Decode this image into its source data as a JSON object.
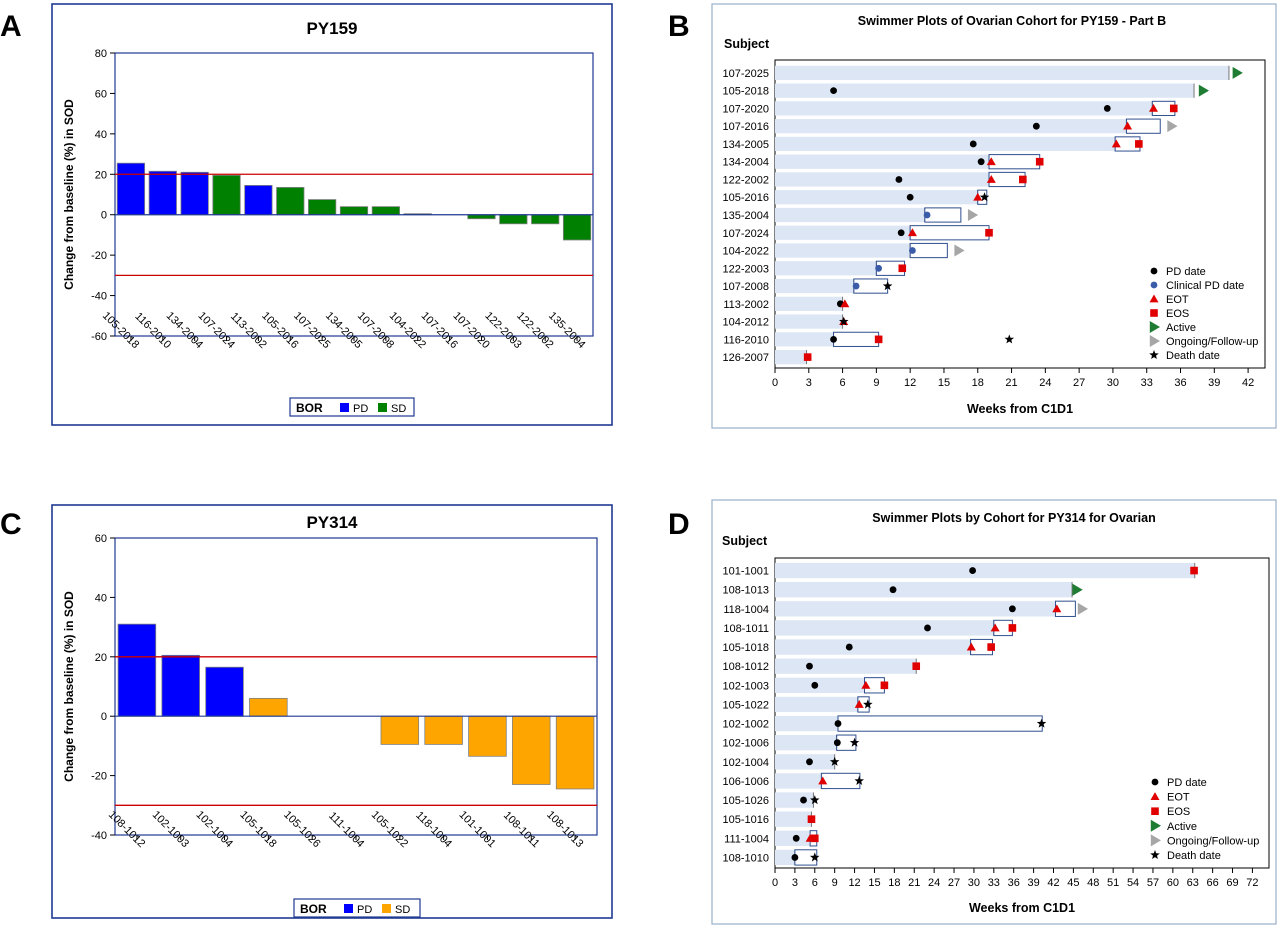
{
  "panel_letters": [
    "A",
    "B",
    "C",
    "D"
  ],
  "chart_data": [
    {
      "panel": "A",
      "type": "bar",
      "title": "PY159",
      "ylabel": "Change from baseline (%) in SOD",
      "ylim": [
        -60,
        80
      ],
      "yticks": [
        80,
        60,
        40,
        20,
        0,
        -20,
        -40,
        -60
      ],
      "ref_lines": [
        20,
        -30
      ],
      "categories": [
        "105-2018",
        "116-2010",
        "134-2004",
        "107-2024",
        "113-2002",
        "105-2016",
        "107-2025",
        "134-2005",
        "107-2008",
        "104-2022",
        "107-2016",
        "107-2020",
        "122-2003",
        "122-2002",
        "135-2004"
      ],
      "values": [
        25.5,
        21.5,
        21,
        19.5,
        14.5,
        13.5,
        7.5,
        4,
        4,
        0.5,
        0,
        -2,
        -4.5,
        -4.5,
        -12.5
      ],
      "groups": [
        "PD",
        "PD",
        "PD",
        "SD",
        "PD",
        "SD",
        "SD",
        "SD",
        "SD",
        "SD",
        "SD",
        "SD",
        "SD",
        "SD",
        "SD"
      ],
      "legend": {
        "title": "BOR",
        "items": [
          "PD",
          "SD"
        ]
      },
      "colors": {
        "PD": "#0000FF",
        "SD": "#008000",
        "ref": "#CC0000"
      }
    },
    {
      "panel": "B",
      "type": "swimmer",
      "title": "Swimmer Plots of Ovarian Cohort for PY159 - Part B",
      "ylabel": "Subject",
      "xlabel": "Weeks from C1D1",
      "xlim": [
        0,
        43.5
      ],
      "xticks": [
        0,
        3,
        6,
        9,
        12,
        15,
        18,
        21,
        24,
        27,
        30,
        33,
        36,
        39,
        42
      ],
      "subjects": [
        {
          "id": "107-2025",
          "bar": 40.3,
          "box": null,
          "pd": null,
          "cpd": null,
          "eot": null,
          "eos": null,
          "death": null,
          "active": 41,
          "ongoing": null
        },
        {
          "id": "105-2018",
          "bar": 37.2,
          "box": null,
          "pd": 5.2,
          "cpd": null,
          "eot": null,
          "eos": null,
          "death": null,
          "active": 38,
          "ongoing": null
        },
        {
          "id": "107-2020",
          "bar": 33.5,
          "box": [
            33.5,
            35.5
          ],
          "pd": 29.5,
          "cpd": null,
          "eot": 33.6,
          "eos": 35.4,
          "death": null,
          "active": null,
          "ongoing": null
        },
        {
          "id": "107-2016",
          "bar": 31.2,
          "box": [
            31.2,
            34.2
          ],
          "pd": 23.2,
          "cpd": null,
          "eot": 31.3,
          "eos": null,
          "death": null,
          "active": null,
          "ongoing": 35.2
        },
        {
          "id": "134-2005",
          "bar": 30.2,
          "box": [
            30.2,
            32.4
          ],
          "pd": 17.6,
          "cpd": null,
          "eot": 30.3,
          "eos": 32.3,
          "death": null,
          "active": null,
          "ongoing": null
        },
        {
          "id": "134-2004",
          "bar": 19,
          "box": [
            19,
            23.5
          ],
          "pd": 18.3,
          "cpd": null,
          "eot": 19.2,
          "eos": 23.5,
          "death": null,
          "active": null,
          "ongoing": null
        },
        {
          "id": "122-2002",
          "bar": 19,
          "box": [
            19,
            22.2
          ],
          "pd": 11,
          "cpd": null,
          "eot": 19.2,
          "eos": 22,
          "death": null,
          "active": null,
          "ongoing": null
        },
        {
          "id": "105-2016",
          "bar": 18,
          "box": [
            18,
            18.8
          ],
          "pd": 12,
          "cpd": null,
          "eot": 18,
          "eos": null,
          "death": 18.6,
          "active": null,
          "ongoing": null
        },
        {
          "id": "135-2004",
          "bar": 13.3,
          "box": [
            13.3,
            16.5
          ],
          "pd": null,
          "cpd": 13.5,
          "eot": null,
          "eos": null,
          "death": null,
          "active": null,
          "ongoing": 17.5
        },
        {
          "id": "107-2024",
          "bar": 12,
          "box": [
            12,
            19
          ],
          "pd": 11.2,
          "cpd": null,
          "eot": 12.2,
          "eos": 19,
          "death": null,
          "active": null,
          "ongoing": null
        },
        {
          "id": "104-2022",
          "bar": 12,
          "box": [
            12,
            15.3
          ],
          "pd": null,
          "cpd": 12.2,
          "eot": null,
          "eos": null,
          "death": null,
          "active": null,
          "ongoing": 16.3
        },
        {
          "id": "122-2003",
          "bar": 9,
          "box": [
            9,
            11.5
          ],
          "pd": null,
          "cpd": 9.2,
          "eot": null,
          "eos": 11.3,
          "death": null,
          "active": null,
          "ongoing": null
        },
        {
          "id": "107-2008",
          "bar": 7,
          "box": [
            7,
            10
          ],
          "pd": null,
          "cpd": 7.2,
          "eot": null,
          "eos": null,
          "death": 10,
          "active": null,
          "ongoing": null
        },
        {
          "id": "113-2002",
          "bar": 6,
          "box": null,
          "pd": 5.8,
          "cpd": null,
          "eot": 6.2,
          "eos": null,
          "death": null,
          "active": null,
          "ongoing": null
        },
        {
          "id": "104-2012",
          "bar": 6,
          "box": null,
          "pd": null,
          "cpd": null,
          "eot": 6.1,
          "eos": null,
          "death": 6.1,
          "active": null,
          "ongoing": null
        },
        {
          "id": "116-2010",
          "bar": 5.2,
          "box": [
            5.2,
            9.2
          ],
          "pd": 5.2,
          "cpd": null,
          "eot": null,
          "eos": 9.2,
          "death": 20.8,
          "active": null,
          "ongoing": null
        },
        {
          "id": "126-2007",
          "bar": 2.8,
          "box": null,
          "pd": null,
          "cpd": 2.9,
          "eot": null,
          "eos": 2.9,
          "death": null,
          "active": null,
          "ongoing": null
        }
      ],
      "legend": [
        "PD date",
        "Clinical PD date",
        "EOT",
        "EOS",
        "Active",
        "Ongoing/Follow-up",
        "Death date"
      ],
      "colors": {
        "bar": "#DCE6F4",
        "pd": "#000000",
        "cpd": "#3A5BA8",
        "eot": "#E00000",
        "eos": "#E00000",
        "active": "#1E7D32",
        "ongoing": "#A6A6A6",
        "death": "#000000"
      }
    },
    {
      "panel": "C",
      "type": "bar",
      "title": "PY314",
      "ylabel": "Change from baseline (%) in SOD",
      "ylim": [
        -40,
        60
      ],
      "yticks": [
        60,
        40,
        20,
        0,
        -20,
        -40
      ],
      "ref_lines": [
        20,
        -30
      ],
      "categories": [
        "108-1012",
        "102-1003",
        "102-1004",
        "105-1018",
        "105-1026",
        "111-1004",
        "105-1022",
        "118-1004",
        "101-1001",
        "108-1011",
        "108-1013"
      ],
      "values": [
        31,
        20.5,
        16.5,
        6,
        0,
        0,
        -9.5,
        -9.5,
        -13.5,
        -23,
        -24.5
      ],
      "groups": [
        "PD",
        "PD",
        "PD",
        "SD",
        "SD",
        "SD",
        "SD",
        "SD",
        "SD",
        "SD",
        "SD"
      ],
      "legend": {
        "title": "BOR",
        "items": [
          "PD",
          "SD"
        ]
      },
      "colors": {
        "PD": "#0000FF",
        "SD": "#FFA500",
        "ref": "#CC0000"
      }
    },
    {
      "panel": "D",
      "type": "swimmer",
      "title": "Swimmer Plots by Cohort for PY314 for Ovarian",
      "ylabel": "Subject",
      "xlabel": "Weeks from C1D1",
      "xlim": [
        0,
        74.5
      ],
      "xticks": [
        0,
        3,
        6,
        9,
        12,
        15,
        18,
        21,
        24,
        27,
        30,
        33,
        36,
        39,
        42,
        45,
        48,
        51,
        54,
        57,
        60,
        63,
        66,
        69,
        72
      ],
      "subjects": [
        {
          "id": "101-1001",
          "bar": 63.3,
          "box": null,
          "pd": 29.8,
          "cpd": null,
          "eot": null,
          "eos": 63.2,
          "death": null,
          "active": null,
          "ongoing": null
        },
        {
          "id": "108-1013",
          "bar": 44.8,
          "box": null,
          "pd": 17.8,
          "cpd": null,
          "eot": null,
          "eos": null,
          "death": null,
          "active": 45.5,
          "ongoing": null
        },
        {
          "id": "118-1004",
          "bar": 42.3,
          "box": [
            42.3,
            45.3
          ],
          "pd": 35.8,
          "cpd": null,
          "eot": 42.5,
          "eos": null,
          "death": null,
          "active": null,
          "ongoing": 46.3
        },
        {
          "id": "108-1011",
          "bar": 33,
          "box": [
            33,
            35.8
          ],
          "pd": 23,
          "cpd": null,
          "eot": 33.2,
          "eos": 35.8,
          "death": null,
          "active": null,
          "ongoing": null
        },
        {
          "id": "105-1018",
          "bar": 29.5,
          "box": [
            29.5,
            32.8
          ],
          "pd": 11.2,
          "cpd": null,
          "eot": 29.6,
          "eos": 32.6,
          "death": null,
          "active": null,
          "ongoing": null
        },
        {
          "id": "108-1012",
          "bar": 21.3,
          "box": null,
          "pd": 5.2,
          "cpd": null,
          "eot": null,
          "eos": 21.3,
          "death": null,
          "active": null,
          "ongoing": null
        },
        {
          "id": "102-1003",
          "bar": 13.5,
          "box": [
            13.5,
            16.5
          ],
          "pd": 6,
          "cpd": null,
          "eot": 13.7,
          "eos": 16.5,
          "death": null,
          "active": null,
          "ongoing": null
        },
        {
          "id": "105-1022",
          "bar": 12.5,
          "box": [
            12.5,
            14.2
          ],
          "pd": null,
          "cpd": null,
          "eot": 12.7,
          "eos": null,
          "death": 14,
          "active": null,
          "ongoing": null
        },
        {
          "id": "102-1002",
          "bar": 9.5,
          "box": [
            9.5,
            40.3
          ],
          "pd": 9.5,
          "cpd": null,
          "eot": null,
          "eos": null,
          "death": 40.2,
          "active": null,
          "ongoing": null
        },
        {
          "id": "102-1006",
          "bar": 9.3,
          "box": [
            9.3,
            12.2
          ],
          "pd": 9.4,
          "cpd": null,
          "eot": null,
          "eos": null,
          "death": 12,
          "active": null,
          "ongoing": null
        },
        {
          "id": "102-1004",
          "bar": 9,
          "box": null,
          "pd": 5.2,
          "cpd": null,
          "eot": null,
          "eos": null,
          "death": 9,
          "active": null,
          "ongoing": null
        },
        {
          "id": "106-1006",
          "bar": 7,
          "box": [
            7,
            12.8
          ],
          "pd": null,
          "cpd": null,
          "eot": 7.2,
          "eos": null,
          "death": 12.7,
          "active": null,
          "ongoing": null
        },
        {
          "id": "105-1026",
          "bar": 5.8,
          "box": null,
          "pd": 4.3,
          "cpd": null,
          "eot": null,
          "eos": null,
          "death": 6,
          "active": null,
          "ongoing": null
        },
        {
          "id": "105-1016",
          "bar": 5.5,
          "box": null,
          "pd": null,
          "cpd": null,
          "eot": null,
          "eos": 5.5,
          "death": null,
          "active": null,
          "ongoing": null
        },
        {
          "id": "111-1004",
          "bar": 5.5,
          "box": [
            5.3,
            6.3
          ],
          "pd": 3.2,
          "cpd": null,
          "eot": 5.3,
          "eos": 6,
          "death": null,
          "active": null,
          "ongoing": null
        },
        {
          "id": "108-1010",
          "bar": 3,
          "box": [
            3,
            6.3
          ],
          "pd": 3,
          "cpd": null,
          "eot": null,
          "eos": null,
          "death": 6,
          "active": null,
          "ongoing": null
        }
      ],
      "legend": [
        "PD date",
        "EOT",
        "EOS",
        "Active",
        "Ongoing/Follow-up",
        "Death date"
      ],
      "colors": {
        "bar": "#DCE6F4",
        "pd": "#000000",
        "cpd": "#3A5BA8",
        "eot": "#E00000",
        "eos": "#E00000",
        "active": "#1E7D32",
        "ongoing": "#A6A6A6",
        "death": "#000000"
      }
    }
  ]
}
